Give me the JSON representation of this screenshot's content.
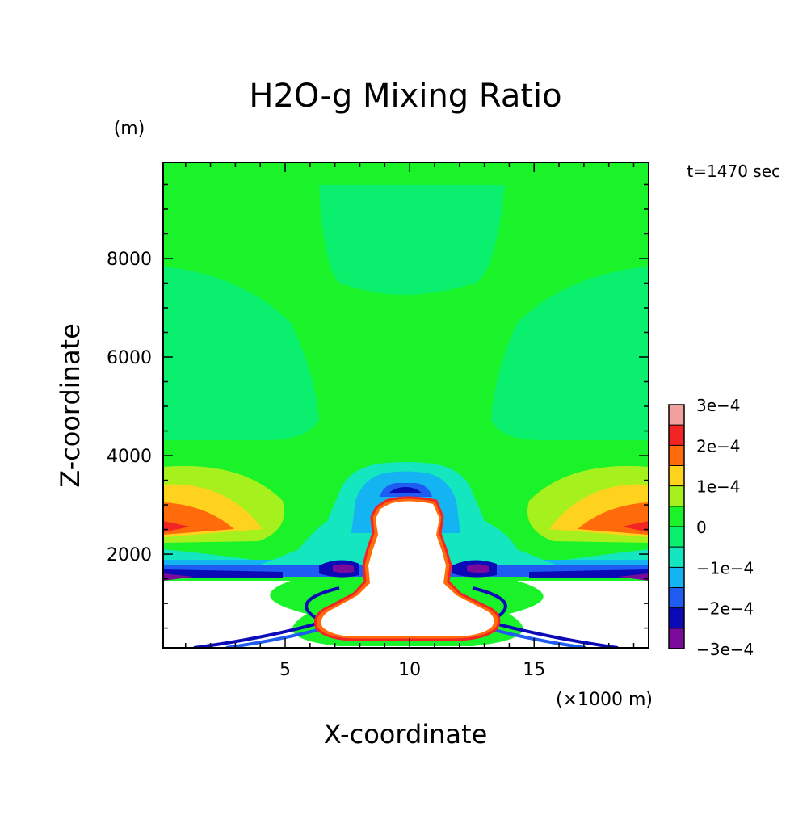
{
  "chart_data": {
    "type": "heatmap",
    "title": "H2O-g Mixing Ratio",
    "xlabel": "X-coordinate",
    "ylabel": "Z-coordinate",
    "x_unit": "(×1000 m)",
    "y_unit": "(m)",
    "time_label": "t=1470 sec",
    "xlim": [
      0.1,
      19.6
    ],
    "ylim": [
      100,
      9950
    ],
    "x_ticks": [
      5,
      10,
      15
    ],
    "y_ticks": [
      2000,
      4000,
      6000,
      8000
    ],
    "colorbar": {
      "levels": [
        -0.0003,
        -0.00025,
        -0.0002,
        -0.00015,
        -0.0001,
        -5e-05,
        0,
        5e-05,
        0.0001,
        0.00015,
        0.0002,
        0.00025,
        0.0003
      ],
      "colors": [
        "#7a0a9a",
        "#0b0ab6",
        "#1f5cf2",
        "#14b4f2",
        "#14e6c0",
        "#0af06e",
        "#1af22a",
        "#a6f01e",
        "#ffd21e",
        "#ff6a0a",
        "#f22424",
        "#f2a0a0"
      ],
      "labels": [
        "3e−4",
        "2e−4",
        "1e−4",
        "0",
        "−1e−4",
        "−2e−4",
        "−3e−4"
      ]
    },
    "regions": {
      "background_value": 2.5e-05,
      "upper_plume_value": -2.5e-05,
      "cloud_core": "white (masked)",
      "lower_layer": "white (masked) below ~1400 m outside core"
    }
  }
}
